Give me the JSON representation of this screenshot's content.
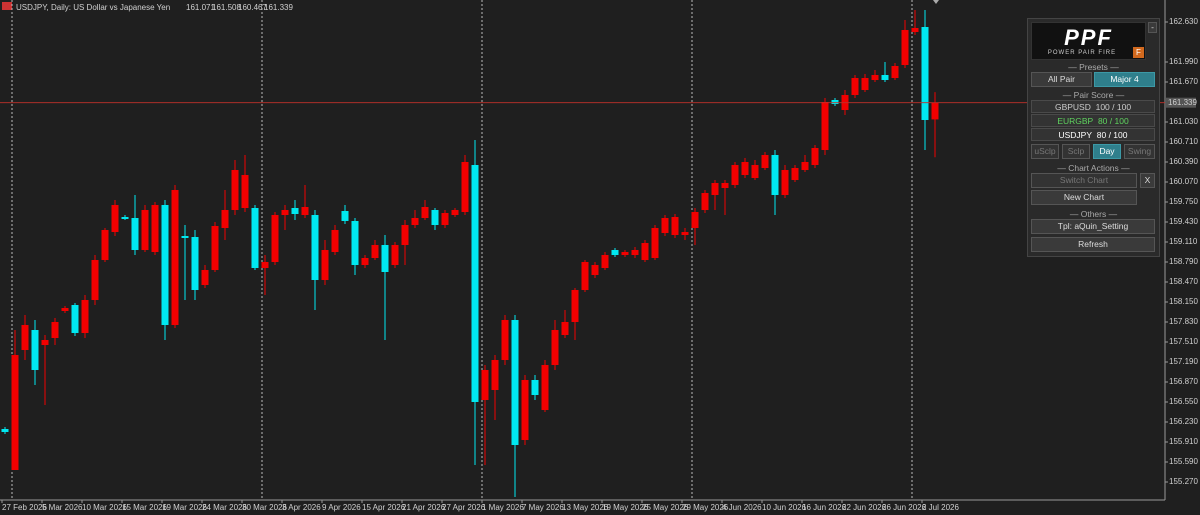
{
  "chart_data": {
    "type": "candlestick",
    "title": "USDJPY, Daily:  US Dollar vs Japanese Yen",
    "up_color": "#f20000",
    "down_color": "#00e8f0",
    "categories": [
      "27 Feb 2026",
      null,
      null,
      null,
      "5 Mar 2026",
      null,
      null,
      null,
      "10 Mar 2026",
      null,
      null,
      null,
      "15 Mar 2026",
      null,
      null,
      null,
      "19 Mar 2026",
      null,
      null,
      null,
      "24 Mar 2026",
      null,
      null,
      null,
      "30 Mar 2026",
      null,
      null,
      null,
      "3 Apr 2026",
      null,
      null,
      null,
      "9 Apr 2026",
      null,
      null,
      null,
      "15 Apr 2026",
      null,
      null,
      null,
      "21 Apr 2026",
      null,
      null,
      null,
      "27 Apr 2026",
      null,
      null,
      null,
      "1 May 2026",
      null,
      null,
      null,
      "7 May 2026",
      null,
      null,
      null,
      "13 May 2026",
      null,
      null,
      null,
      "19 May 2026",
      null,
      null,
      null,
      "25 May 2026",
      null,
      null,
      null,
      "29 May 2026",
      null,
      null,
      null,
      "4 Jun 2026",
      null,
      null,
      null,
      "10 Jun 2026",
      null,
      null,
      null,
      "16 Jun 2026",
      null,
      null,
      null,
      "22 Jun 2026",
      null,
      null,
      null,
      "26 Jun 2026",
      null,
      null,
      null,
      "2 Jul 2026",
      null
    ],
    "open": [
      156.118,
      155.462,
      157.382,
      157.702,
      157.462,
      157.574,
      158.006,
      158.102,
      157.654,
      158.182,
      158.822,
      159.27,
      159.51,
      159.494,
      158.982,
      158.95,
      159.702,
      157.782,
      159.206,
      159.19,
      158.422,
      158.662,
      159.334,
      159.622,
      159.654,
      159.654,
      158.694,
      158.79,
      159.542,
      159.654,
      159.542,
      159.542,
      158.502,
      158.95,
      159.606,
      159.446,
      158.742,
      158.854,
      159.062,
      158.742,
      159.062,
      159.382,
      159.494,
      159.622,
      159.382,
      159.542,
      159.59,
      160.342,
      156.582,
      156.742,
      157.222,
      157.862,
      155.942,
      156.902,
      156.422,
      157.142,
      157.622,
      157.83,
      158.342,
      158.582,
      158.694,
      158.982,
      158.902,
      158.902,
      158.822,
      158.854,
      159.254,
      159.222,
      159.222,
      159.334,
      159.622,
      159.862,
      159.974,
      160.022,
      160.182,
      160.134,
      160.294,
      160.502,
      159.862,
      160.102,
      160.262,
      160.342,
      160.582,
      161.382,
      161.222,
      161.462,
      161.542,
      161.702,
      161.782,
      161.734,
      161.942,
      162.47,
      162.55,
      161.071
    ],
    "high": [
      156.15,
      157.702,
      157.942,
      157.862,
      157.622,
      157.894,
      158.086,
      158.134,
      158.262,
      158.902,
      159.334,
      159.782,
      159.542,
      159.862,
      159.702,
      159.75,
      159.782,
      160.022,
      159.382,
      159.302,
      158.742,
      159.43,
      159.942,
      160.422,
      160.502,
      159.702,
      158.902,
      159.59,
      159.702,
      159.782,
      160.022,
      159.622,
      159.142,
      159.382,
      159.702,
      159.494,
      158.902,
      159.142,
      159.222,
      159.11,
      159.462,
      159.622,
      159.782,
      159.654,
      159.622,
      159.654,
      160.502,
      160.742,
      157.142,
      157.302,
      157.942,
      157.942,
      156.982,
      156.982,
      157.222,
      157.862,
      158.022,
      158.374,
      158.822,
      158.79,
      158.95,
      159.014,
      158.982,
      159.03,
      159.142,
      159.382,
      159.542,
      159.558,
      159.334,
      159.654,
      159.942,
      160.102,
      160.102,
      160.39,
      160.454,
      160.422,
      160.55,
      160.582,
      160.342,
      160.342,
      160.502,
      160.662,
      161.414,
      161.414,
      161.542,
      161.782,
      161.798,
      161.862,
      161.99,
      161.974,
      162.662,
      162.822,
      162.822,
      161.508
    ],
    "low": [
      156.038,
      155.462,
      157.222,
      156.822,
      156.502,
      157.462,
      157.974,
      157.606,
      157.574,
      158.102,
      158.79,
      159.206,
      159.462,
      158.902,
      158.95,
      158.902,
      157.542,
      157.734,
      158.182,
      158.182,
      158.374,
      158.63,
      159.142,
      159.542,
      159.59,
      158.662,
      158.262,
      158.742,
      159.302,
      159.462,
      159.494,
      158.022,
      158.422,
      158.902,
      159.398,
      158.582,
      158.694,
      158.822,
      157.542,
      158.694,
      158.742,
      159.334,
      159.462,
      159.302,
      159.334,
      159.51,
      159.542,
      155.542,
      155.542,
      156.262,
      157.142,
      155.03,
      155.862,
      156.582,
      156.39,
      157.062,
      157.574,
      157.542,
      158.31,
      158.534,
      158.662,
      158.87,
      158.87,
      158.854,
      158.79,
      158.822,
      159.206,
      159.174,
      159.142,
      159.062,
      159.574,
      159.622,
      159.542,
      159.974,
      160.134,
      160.102,
      160.262,
      159.542,
      159.814,
      160.07,
      160.23,
      160.294,
      160.502,
      161.286,
      161.142,
      161.414,
      161.51,
      161.67,
      161.67,
      161.702,
      161.894,
      162.422,
      160.582,
      160.467
    ],
    "close": [
      156.07,
      157.302,
      157.782,
      157.062,
      157.542,
      157.83,
      158.054,
      157.654,
      158.182,
      158.822,
      159.302,
      159.702,
      159.478,
      158.982,
      159.622,
      159.702,
      157.782,
      159.942,
      159.174,
      158.342,
      158.662,
      159.366,
      159.622,
      160.262,
      160.182,
      158.694,
      158.79,
      159.542,
      159.622,
      159.558,
      159.67,
      158.502,
      158.982,
      159.302,
      159.446,
      158.742,
      158.854,
      159.062,
      158.63,
      159.062,
      159.382,
      159.494,
      159.67,
      159.382,
      159.574,
      159.622,
      160.39,
      156.55,
      157.062,
      157.222,
      157.862,
      155.862,
      156.902,
      156.662,
      157.142,
      157.702,
      157.83,
      158.342,
      158.79,
      158.742,
      158.902,
      158.902,
      158.95,
      158.982,
      159.094,
      159.334,
      159.494,
      159.51,
      159.27,
      159.59,
      159.894,
      160.054,
      160.054,
      160.342,
      160.39,
      160.342,
      160.502,
      159.862,
      160.262,
      160.294,
      160.39,
      160.614,
      161.35,
      161.318,
      161.462,
      161.734,
      161.734,
      161.782,
      161.702,
      161.926,
      162.502,
      162.534,
      161.062,
      161.339
    ],
    "ylim": [
      154.982,
      162.982
    ],
    "yticks": [
      {
        "value": 162.63,
        "label": "162.630"
      },
      {
        "value": 161.99,
        "label": "161.990"
      },
      {
        "value": 161.67,
        "label": "161.670"
      },
      {
        "value": 161.03,
        "label": "161.030"
      },
      {
        "value": 160.71,
        "label": "160.710"
      },
      {
        "value": 160.39,
        "label": "160.390"
      },
      {
        "value": 160.07,
        "label": "160.070"
      },
      {
        "value": 159.75,
        "label": "159.750"
      },
      {
        "value": 159.43,
        "label": "159.430"
      },
      {
        "value": 159.11,
        "label": "159.110"
      },
      {
        "value": 158.79,
        "label": "158.790"
      },
      {
        "value": 158.47,
        "label": "158.470"
      },
      {
        "value": 158.15,
        "label": "158.150"
      },
      {
        "value": 157.83,
        "label": "157.830"
      },
      {
        "value": 157.51,
        "label": "157.510"
      },
      {
        "value": 157.19,
        "label": "157.190"
      },
      {
        "value": 156.87,
        "label": "156.870"
      },
      {
        "value": 156.55,
        "label": "156.550"
      },
      {
        "value": 156.23,
        "label": "156.230"
      },
      {
        "value": 155.91,
        "label": "155.910"
      },
      {
        "value": 155.59,
        "label": "155.590"
      },
      {
        "value": 155.27,
        "label": "155.270"
      }
    ]
  },
  "panel": {
    "logo": "PPF",
    "tagline": "POWER PAIR FIRE",
    "badge": "F",
    "minimize": "-",
    "presets_title": "Presets",
    "presets": [
      "All Pair",
      "Major 4"
    ],
    "score_title": "Pair Score",
    "scores": [
      {
        "pair": "GBPUSD",
        "score": "100 / 100"
      },
      {
        "pair": "EURGBP",
        "score": "80 / 100"
      },
      {
        "pair": "USDJPY",
        "score": "80 / 100"
      }
    ],
    "modes": [
      "uSclp",
      "Sclp",
      "Day",
      "Swing"
    ],
    "actions_title": "Chart Actions",
    "switch": "Switch Chart",
    "close": "X",
    "new_chart": "New Chart",
    "others_title": "Others",
    "template": "Tpl: aQuin_Setting",
    "refresh": "Refresh"
  }
}
